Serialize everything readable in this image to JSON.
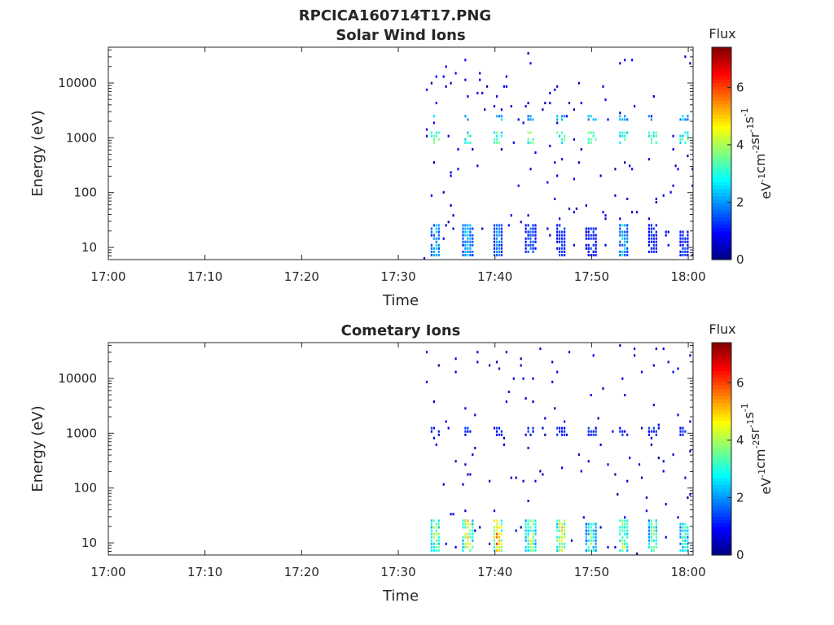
{
  "figure": {
    "title": "RPCICA160714T17.PNG"
  },
  "chart_data": [
    {
      "type": "heatmap",
      "title": "Solar Wind Ions",
      "xlabel": "Time",
      "ylabel": "Energy (eV)",
      "x_ticks": [
        "17:00",
        "17:10",
        "17:20",
        "17:30",
        "17:40",
        "17:50",
        "18:00"
      ],
      "x_range_minutes": [
        0,
        60.5
      ],
      "y_scale": "log",
      "y_ticks": [
        "10",
        "100",
        "1000",
        "10000"
      ],
      "y_range": [
        6,
        45000
      ],
      "colorbar": {
        "title": "Flux",
        "ticks": [
          "0",
          "2",
          "4",
          "6"
        ],
        "range": [
          0,
          7.4
        ],
        "units": "eV-1cm-2sr-1s-1",
        "colormap": "jet"
      },
      "data_start_minute": 32.6,
      "sweep_period_minutes": 3.3,
      "bursts": [
        {
          "minute": 33.8,
          "e_low": 7,
          "e_high": 28,
          "flux": 2.3
        },
        {
          "minute": 37.1,
          "e_low": 7,
          "e_high": 28,
          "flux": 2.6
        },
        {
          "minute": 40.2,
          "e_low": 7,
          "e_high": 28,
          "flux": 2.0
        },
        {
          "minute": 43.6,
          "e_low": 8,
          "e_high": 28,
          "flux": 1.7
        },
        {
          "minute": 46.8,
          "e_low": 7,
          "e_high": 28,
          "flux": 1.6
        },
        {
          "minute": 49.9,
          "e_low": 7,
          "e_high": 24,
          "flux": 1.4
        },
        {
          "minute": 53.2,
          "e_low": 7,
          "e_high": 28,
          "flux": 2.6
        },
        {
          "minute": 56.3,
          "e_low": 8,
          "e_high": 28,
          "flux": 1.4
        },
        {
          "minute": 59.5,
          "e_low": 7,
          "e_high": 22,
          "flux": 1.5
        }
      ],
      "bands": [
        {
          "e_low": 800,
          "e_high": 1400,
          "flux": 3.3
        },
        {
          "e_low": 2000,
          "e_high": 2600,
          "flux": 2.2
        }
      ]
    },
    {
      "type": "heatmap",
      "title": "Cometary Ions",
      "xlabel": "Time",
      "ylabel": "Energy (eV)",
      "x_ticks": [
        "17:00",
        "17:10",
        "17:20",
        "17:30",
        "17:40",
        "17:50",
        "18:00"
      ],
      "x_range_minutes": [
        0,
        60.5
      ],
      "y_scale": "log",
      "y_ticks": [
        "10",
        "100",
        "1000",
        "10000"
      ],
      "y_range": [
        6,
        45000
      ],
      "colorbar": {
        "title": "Flux",
        "ticks": [
          "0",
          "2",
          "4",
          "6"
        ],
        "range": [
          0,
          7.4
        ],
        "units": "eV-1cm-2sr-1s-1",
        "colormap": "jet"
      },
      "data_start_minute": 32.6,
      "sweep_period_minutes": 3.3,
      "bursts": [
        {
          "minute": 33.8,
          "e_low": 7,
          "e_high": 28,
          "flux": 4.2
        },
        {
          "minute": 37.1,
          "e_low": 7,
          "e_high": 28,
          "flux": 4.8
        },
        {
          "minute": 40.2,
          "e_low": 7,
          "e_high": 28,
          "flux": 5.8
        },
        {
          "minute": 43.6,
          "e_low": 7,
          "e_high": 28,
          "flux": 4.3
        },
        {
          "minute": 46.8,
          "e_low": 7,
          "e_high": 28,
          "flux": 5.0
        },
        {
          "minute": 49.9,
          "e_low": 7,
          "e_high": 24,
          "flux": 3.6
        },
        {
          "minute": 53.2,
          "e_low": 7,
          "e_high": 28,
          "flux": 4.2
        },
        {
          "minute": 56.3,
          "e_low": 7,
          "e_high": 28,
          "flux": 3.8
        },
        {
          "minute": 59.5,
          "e_low": 7,
          "e_high": 24,
          "flux": 3.4
        }
      ],
      "bands": [
        {
          "e_low": 900,
          "e_high": 1300,
          "flux": 1.2
        }
      ]
    }
  ]
}
